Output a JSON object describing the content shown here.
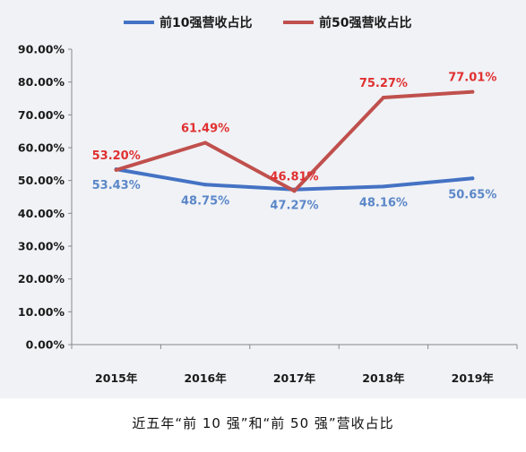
{
  "chart_data": {
    "type": "line",
    "categories": [
      "2015年",
      "2016年",
      "2017年",
      "2018年",
      "2019年"
    ],
    "y_ticks": [
      "0.00%",
      "10.00%",
      "20.00%",
      "30.00%",
      "40.00%",
      "50.00%",
      "60.00%",
      "70.00%",
      "80.00%",
      "90.00%"
    ],
    "ylim": [
      0,
      90
    ],
    "grid": false,
    "legend_position": "top",
    "series": [
      {
        "name": "前10强营收占比",
        "color": "#4472c4",
        "label_color": "#5b87c8",
        "values": [
          53.43,
          48.75,
          47.27,
          48.16,
          50.65
        ],
        "labels": [
          "53.43%",
          "48.75%",
          "47.27%",
          "48.16%",
          "50.65%"
        ]
      },
      {
        "name": "前50强营收占比",
        "color": "#c0504d",
        "label_color": "#e03030",
        "values": [
          53.2,
          61.49,
          46.81,
          75.27,
          77.01
        ],
        "labels": [
          "53.20%",
          "61.49%",
          "46.81%",
          "75.27%",
          "77.01%"
        ]
      }
    ]
  },
  "caption": "近五年“前 10 强”和“前 50 强”营收占比"
}
